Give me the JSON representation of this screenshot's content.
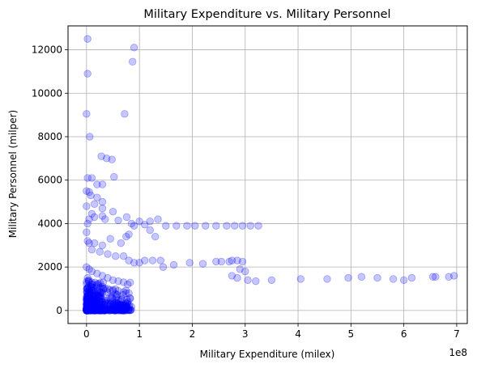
{
  "chart_data": {
    "type": "scatter",
    "title": "Military Expenditure vs. Military Personnel",
    "xlabel": "Military Expenditure (milex)",
    "ylabel": "Military Personnel (milper)",
    "x_multiplier": "1e8",
    "xlim": [
      -0.35,
      7.2
    ],
    "ylim": [
      -600,
      13100
    ],
    "x_ticks": [
      0,
      1,
      2,
      3,
      4,
      5,
      6,
      7
    ],
    "y_ticks": [
      0,
      2000,
      4000,
      6000,
      8000,
      10000,
      12000
    ],
    "grid": true,
    "legend": "none",
    "marker_color": "#0000ff",
    "marker_alpha": 0.22,
    "series": [
      {
        "points": [
          [
            0.02,
            12500
          ],
          [
            0.9,
            12100
          ],
          [
            0.87,
            11450
          ],
          [
            0.02,
            10900
          ],
          [
            0.0,
            9050
          ],
          [
            0.72,
            9050
          ],
          [
            0.06,
            8000
          ],
          [
            0.28,
            7100
          ],
          [
            0.38,
            7000
          ],
          [
            0.48,
            6950
          ],
          [
            0.02,
            6100
          ],
          [
            0.1,
            6100
          ],
          [
            0.52,
            6150
          ],
          [
            0.2,
            5800
          ],
          [
            0.3,
            5800
          ],
          [
            0.0,
            5500
          ],
          [
            0.05,
            5450
          ],
          [
            0.08,
            5300
          ],
          [
            0.2,
            5200
          ],
          [
            0.3,
            5000
          ],
          [
            0.0,
            4800
          ],
          [
            0.15,
            4900
          ],
          [
            0.3,
            4700
          ],
          [
            0.5,
            4550
          ],
          [
            0.1,
            4450
          ],
          [
            0.3,
            4350
          ],
          [
            0.6,
            4150
          ],
          [
            0.76,
            4300
          ],
          [
            0.85,
            4000
          ],
          [
            1.0,
            4100
          ],
          [
            1.1,
            3950
          ],
          [
            1.2,
            4100
          ],
          [
            1.35,
            4200
          ],
          [
            1.5,
            3900
          ],
          [
            1.7,
            3900
          ],
          [
            1.9,
            3900
          ],
          [
            2.05,
            3900
          ],
          [
            2.25,
            3900
          ],
          [
            2.45,
            3900
          ],
          [
            2.65,
            3900
          ],
          [
            2.8,
            3900
          ],
          [
            2.95,
            3900
          ],
          [
            3.1,
            3900
          ],
          [
            3.25,
            3900
          ],
          [
            0.15,
            4300
          ],
          [
            0.35,
            4200
          ],
          [
            0.05,
            4200
          ],
          [
            0.02,
            4000
          ],
          [
            0.0,
            3600
          ],
          [
            0.02,
            3200
          ],
          [
            0.05,
            3100
          ],
          [
            0.15,
            3100
          ],
          [
            0.3,
            3000
          ],
          [
            0.45,
            3300
          ],
          [
            0.65,
            3100
          ],
          [
            0.75,
            3400
          ],
          [
            0.9,
            3900
          ],
          [
            1.2,
            3700
          ],
          [
            1.3,
            3400
          ],
          [
            0.8,
            3500
          ],
          [
            0.1,
            2800
          ],
          [
            0.25,
            2700
          ],
          [
            0.4,
            2600
          ],
          [
            0.55,
            2500
          ],
          [
            0.7,
            2500
          ],
          [
            0.8,
            2300
          ],
          [
            0.9,
            2200
          ],
          [
            1.0,
            2200
          ],
          [
            1.1,
            2300
          ],
          [
            1.25,
            2300
          ],
          [
            1.4,
            2300
          ],
          [
            1.45,
            2000
          ],
          [
            1.65,
            2100
          ],
          [
            1.95,
            2200
          ],
          [
            2.2,
            2150
          ],
          [
            2.45,
            2250
          ],
          [
            2.55,
            2250
          ],
          [
            2.7,
            2250
          ],
          [
            2.75,
            2300
          ],
          [
            2.85,
            2300
          ],
          [
            2.95,
            2250
          ],
          [
            2.9,
            1900
          ],
          [
            3.0,
            1800
          ],
          [
            2.75,
            1600
          ],
          [
            2.85,
            1500
          ],
          [
            3.05,
            1400
          ],
          [
            3.2,
            1350
          ],
          [
            3.5,
            1400
          ],
          [
            4.05,
            1450
          ],
          [
            4.55,
            1450
          ],
          [
            4.95,
            1500
          ],
          [
            5.2,
            1550
          ],
          [
            5.5,
            1500
          ],
          [
            5.8,
            1450
          ],
          [
            6.0,
            1400
          ],
          [
            6.15,
            1500
          ],
          [
            6.55,
            1550
          ],
          [
            6.6,
            1550
          ],
          [
            6.85,
            1550
          ],
          [
            6.95,
            1600
          ],
          [
            0.0,
            2000
          ],
          [
            0.05,
            1900
          ],
          [
            0.1,
            1800
          ],
          [
            0.2,
            1700
          ],
          [
            0.3,
            1600
          ],
          [
            0.4,
            1500
          ],
          [
            0.5,
            1400
          ],
          [
            0.6,
            1350
          ],
          [
            0.7,
            1300
          ],
          [
            0.02,
            1500
          ],
          [
            0.1,
            1300
          ],
          [
            0.2,
            1200
          ],
          [
            0.3,
            1100
          ],
          [
            0.4,
            1000
          ],
          [
            0.5,
            950
          ],
          [
            0.6,
            900
          ],
          [
            0.7,
            850
          ],
          [
            0.8,
            800
          ],
          [
            0.02,
            1000
          ],
          [
            0.05,
            800
          ],
          [
            0.1,
            700
          ],
          [
            0.15,
            600
          ],
          [
            0.2,
            500
          ],
          [
            0.25,
            450
          ],
          [
            0.3,
            400
          ],
          [
            0.35,
            350
          ],
          [
            0.4,
            300
          ],
          [
            0.45,
            280
          ],
          [
            0.5,
            260
          ],
          [
            0.55,
            240
          ],
          [
            0.6,
            220
          ],
          [
            0.65,
            210
          ],
          [
            0.7,
            200
          ],
          [
            0.75,
            190
          ],
          [
            0.8,
            180
          ],
          [
            0.0,
            500
          ],
          [
            0.0,
            300
          ],
          [
            0.0,
            100
          ],
          [
            0.02,
            50
          ],
          [
            0.05,
            150
          ],
          [
            0.08,
            250
          ],
          [
            0.12,
            350
          ],
          [
            0.18,
            200
          ],
          [
            0.22,
            120
          ],
          [
            0.28,
            80
          ],
          [
            0.32,
            60
          ],
          [
            0.38,
            40
          ],
          [
            0.45,
            30
          ],
          [
            0.5,
            20
          ],
          [
            0.55,
            15
          ]
        ]
      }
    ]
  }
}
